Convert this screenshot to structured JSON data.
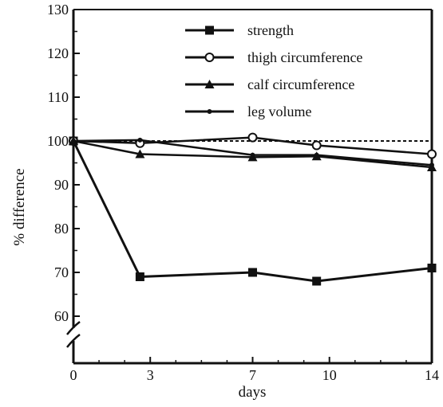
{
  "chart_data": {
    "type": "line",
    "title": "",
    "xlabel": "days",
    "ylabel": "% difference",
    "x": [
      0,
      2.6,
      7,
      9.5,
      14
    ],
    "xticks": [
      0,
      3,
      7,
      10,
      14
    ],
    "yticks": [
      60,
      70,
      80,
      90,
      100,
      110,
      120,
      130
    ],
    "xlim": [
      0,
      14
    ],
    "ylim": [
      60,
      130
    ],
    "axis_break": true,
    "reference_line": 100,
    "legend_position": "top-center",
    "series": [
      {
        "name": "strength",
        "marker": "filled-square",
        "values": [
          100,
          69,
          70,
          68,
          71
        ]
      },
      {
        "name": "thigh circumference",
        "marker": "open-circle",
        "values": [
          100,
          99.5,
          100.8,
          99,
          97
        ]
      },
      {
        "name": "calf circumference",
        "marker": "filled-triangle",
        "values": [
          100,
          97,
          96.3,
          96.5,
          94
        ]
      },
      {
        "name": "leg volume",
        "marker": "small-dot",
        "values": [
          100,
          100.2,
          96.8,
          96.8,
          94.5
        ]
      }
    ]
  },
  "colors": {
    "ink": "#111111"
  }
}
